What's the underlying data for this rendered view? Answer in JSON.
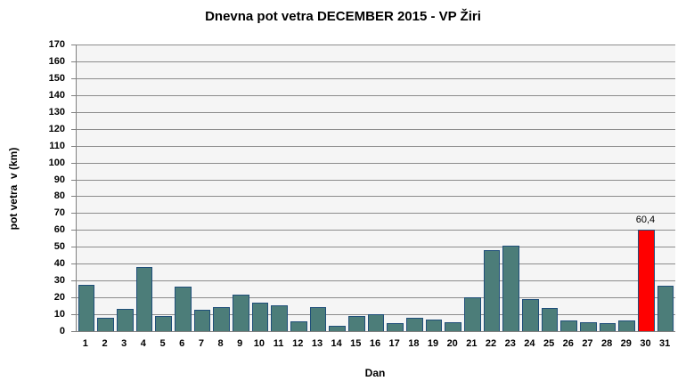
{
  "chart_data": {
    "type": "bar",
    "title": "Dnevna pot vetra DECEMBER 2015 - VP Žiri",
    "xlabel": "Dan",
    "ylabel": "pot vetra  v (km)",
    "categories": [
      "1",
      "2",
      "3",
      "4",
      "5",
      "6",
      "7",
      "8",
      "9",
      "10",
      "11",
      "12",
      "13",
      "14",
      "15",
      "16",
      "17",
      "18",
      "19",
      "20",
      "21",
      "22",
      "23",
      "24",
      "25",
      "26",
      "27",
      "28",
      "29",
      "30",
      "31"
    ],
    "values": [
      27.5,
      8,
      13,
      38,
      9,
      26.5,
      12.5,
      14.5,
      21.5,
      17,
      15.5,
      6,
      14,
      3,
      9,
      10,
      4.5,
      8,
      7,
      5.5,
      20,
      48,
      50.5,
      19,
      13.5,
      6.5,
      5.5,
      4.5,
      6.5,
      60.4,
      27
    ],
    "ylim": [
      0,
      170
    ],
    "ytick_step": 10,
    "grid": true,
    "legend": false,
    "bar_color": "#4c7d79",
    "bar_border_color": "#1f4e79",
    "highlight_day": "30",
    "highlight_color": "#ff0000",
    "annotation": {
      "day": "30",
      "text": "60,4"
    },
    "plot_background": "#f5f5f5",
    "gridline_color": "#8c8c8c",
    "axis_line_color": "#808080"
  }
}
